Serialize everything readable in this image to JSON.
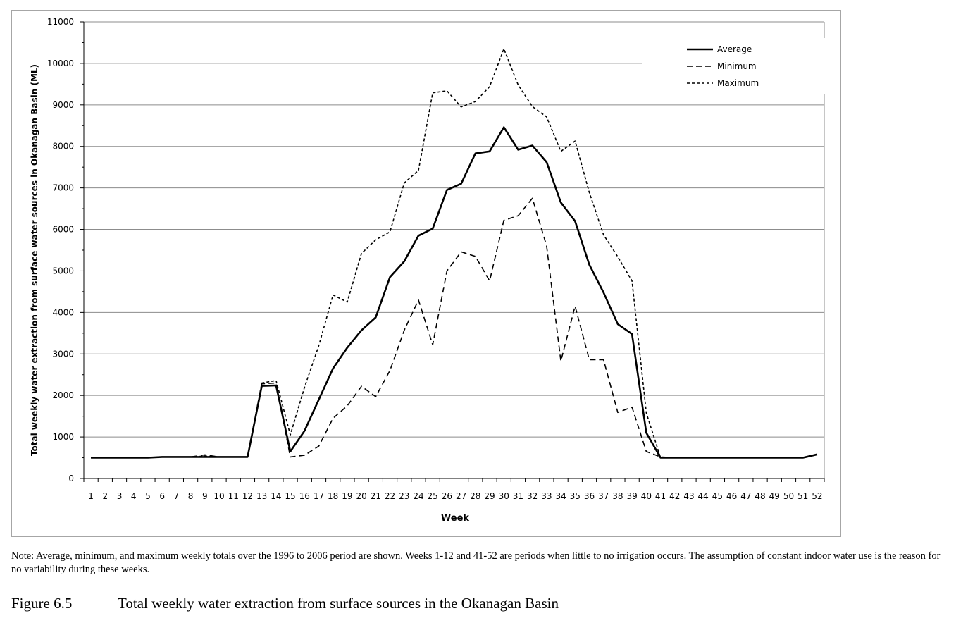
{
  "chart_data": {
    "type": "line",
    "xlabel": "Week",
    "ylabel": "Total weekly water extraction from surface water sources in Okanagan Basin (ML)",
    "ylim": [
      0,
      11000
    ],
    "yticks": [
      0,
      1000,
      2000,
      3000,
      4000,
      5000,
      6000,
      7000,
      8000,
      9000,
      10000,
      11000
    ],
    "x": [
      1,
      2,
      3,
      4,
      5,
      6,
      7,
      8,
      9,
      10,
      11,
      12,
      13,
      14,
      15,
      16,
      17,
      18,
      19,
      20,
      21,
      22,
      23,
      24,
      25,
      26,
      27,
      28,
      29,
      30,
      31,
      32,
      33,
      34,
      35,
      36,
      37,
      38,
      39,
      40,
      41,
      42,
      43,
      44,
      45,
      46,
      47,
      48,
      49,
      50,
      51,
      52
    ],
    "grid": true,
    "legend_position": "top-right",
    "series": [
      {
        "name": "Average",
        "style": "solid",
        "values": [
          500,
          500,
          500,
          500,
          500,
          520,
          520,
          520,
          520,
          520,
          520,
          520,
          2230,
          2240,
          650,
          1150,
          1900,
          2650,
          3150,
          3570,
          3880,
          4850,
          5230,
          5850,
          6020,
          6950,
          7100,
          7830,
          7880,
          8460,
          7920,
          8020,
          7620,
          6650,
          6200,
          5150,
          4480,
          3720,
          3480,
          1100,
          500,
          500,
          500,
          500,
          500,
          500,
          500,
          500,
          500,
          500,
          500,
          580
        ]
      },
      {
        "name": "Minimum",
        "style": "dashed",
        "values": [
          500,
          500,
          500,
          500,
          500,
          520,
          520,
          520,
          570,
          520,
          520,
          520,
          2280,
          2300,
          520,
          560,
          780,
          1450,
          1750,
          2220,
          1970,
          2600,
          3570,
          4300,
          3220,
          5000,
          5460,
          5350,
          4760,
          6220,
          6330,
          6750,
          5600,
          2830,
          4150,
          2860,
          2860,
          1590,
          1720,
          650,
          520,
          500,
          500,
          500,
          500,
          500,
          500,
          500,
          500,
          500,
          500,
          580
        ]
      },
      {
        "name": "Maximum",
        "style": "short-dashed",
        "values": [
          500,
          500,
          500,
          500,
          500,
          520,
          520,
          520,
          540,
          520,
          520,
          520,
          2300,
          2360,
          1050,
          2200,
          3200,
          4420,
          4250,
          5420,
          5750,
          5940,
          7120,
          7420,
          9290,
          9340,
          8950,
          9080,
          9440,
          10350,
          9480,
          8960,
          8710,
          7880,
          8130,
          6890,
          5870,
          5340,
          4760,
          1580,
          500,
          500,
          500,
          500,
          500,
          500,
          500,
          500,
          500,
          500,
          500,
          580
        ]
      }
    ]
  },
  "note": "Note: Average, minimum, and maximum weekly totals over the 1996 to 2006 period are shown.  Weeks 1-12 and 41-52 are periods when little to no irrigation occurs.  The assumption of constant indoor water use is the reason for no variability during these weeks.",
  "caption": {
    "number": "Figure 6.5",
    "text": "Total weekly water extraction from surface sources in the Okanagan Basin"
  }
}
